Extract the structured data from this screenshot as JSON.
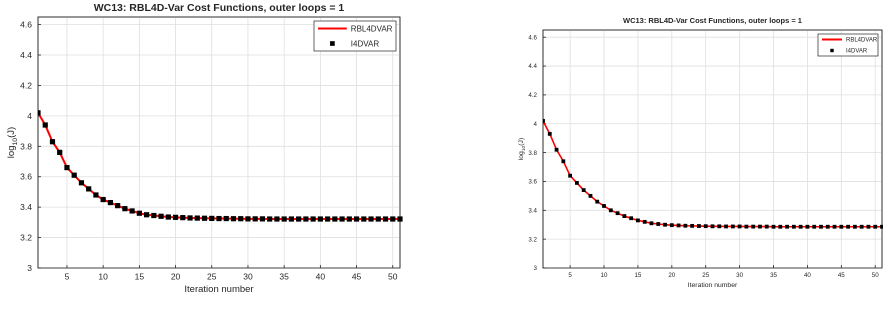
{
  "chart_data": [
    {
      "type": "line",
      "title": "WC13: RBL4D-Var Cost Functions, outer loops = 1",
      "xlabel": "Iteration number",
      "ylabel_base": "log",
      "ylabel_sub": "10",
      "ylabel_arg": "(J)",
      "xlim": [
        1,
        51
      ],
      "ylim": [
        3.0,
        4.65
      ],
      "grid": true,
      "legend_position": "top-right",
      "xticks": [
        5,
        10,
        15,
        20,
        25,
        30,
        35,
        40,
        45,
        50
      ],
      "xtick_labels": [
        "5",
        "10",
        "15",
        "20",
        "25",
        "30",
        "35",
        "40",
        "45",
        "50"
      ],
      "yticks": [
        3.0,
        3.2,
        3.4,
        3.6,
        3.8,
        4.0,
        4.2,
        4.4,
        4.6
      ],
      "ytick_labels": [
        "3",
        "3.2",
        "3.4",
        "3.6",
        "3.8",
        "4",
        "4.2",
        "4.4",
        "4.6"
      ],
      "series": [
        {
          "name": "RBL4DVAR",
          "style": "line",
          "color": "#ff0000",
          "x": [
            1,
            2,
            3,
            4,
            5,
            6,
            7,
            8,
            9,
            10,
            11,
            12,
            13,
            14,
            15,
            16,
            17,
            18,
            19,
            20,
            21,
            22,
            23,
            24,
            25,
            26,
            27,
            28,
            29,
            30,
            31,
            32,
            33,
            34,
            35,
            36,
            37,
            38,
            39,
            40,
            41,
            42,
            43,
            44,
            45,
            46,
            47,
            48,
            49,
            50,
            51
          ],
          "y": [
            4.02,
            3.94,
            3.83,
            3.76,
            3.66,
            3.61,
            3.56,
            3.52,
            3.48,
            3.45,
            3.43,
            3.41,
            3.39,
            3.375,
            3.36,
            3.35,
            3.345,
            3.34,
            3.335,
            3.333,
            3.331,
            3.329,
            3.328,
            3.327,
            3.326,
            3.325,
            3.325,
            3.324,
            3.324,
            3.323,
            3.323,
            3.323,
            3.322,
            3.322,
            3.322,
            3.322,
            3.322,
            3.322,
            3.322,
            3.322,
            3.322,
            3.322,
            3.322,
            3.322,
            3.322,
            3.322,
            3.322,
            3.322,
            3.322,
            3.322,
            3.322
          ]
        },
        {
          "name": "I4DVAR",
          "style": "marker",
          "color": "#000000",
          "x": [
            1,
            2,
            3,
            4,
            5,
            6,
            7,
            8,
            9,
            10,
            11,
            12,
            13,
            14,
            15,
            16,
            17,
            18,
            19,
            20,
            21,
            22,
            23,
            24,
            25,
            26,
            27,
            28,
            29,
            30,
            31,
            32,
            33,
            34,
            35,
            36,
            37,
            38,
            39,
            40,
            41,
            42,
            43,
            44,
            45,
            46,
            47,
            48,
            49,
            50,
            51
          ],
          "y": [
            4.02,
            3.94,
            3.83,
            3.76,
            3.66,
            3.61,
            3.56,
            3.52,
            3.48,
            3.45,
            3.43,
            3.41,
            3.39,
            3.375,
            3.36,
            3.35,
            3.345,
            3.34,
            3.335,
            3.333,
            3.331,
            3.329,
            3.328,
            3.327,
            3.326,
            3.325,
            3.325,
            3.324,
            3.324,
            3.323,
            3.323,
            3.323,
            3.322,
            3.322,
            3.322,
            3.322,
            3.322,
            3.322,
            3.322,
            3.322,
            3.322,
            3.322,
            3.322,
            3.322,
            3.322,
            3.322,
            3.322,
            3.322,
            3.322,
            3.322,
            3.322
          ]
        }
      ]
    },
    {
      "type": "line",
      "title": "WC13: RBL4D-Var Cost Functions, outer loops = 1",
      "xlabel": "Iteration number",
      "ylabel_base": "log",
      "ylabel_sub": "10",
      "ylabel_arg": "(J)",
      "xlim": [
        1,
        51
      ],
      "ylim": [
        3.0,
        4.65
      ],
      "grid": true,
      "legend_position": "top-right",
      "xticks": [
        5,
        10,
        15,
        20,
        25,
        30,
        35,
        40,
        45,
        50
      ],
      "xtick_labels": [
        "5",
        "10",
        "15",
        "20",
        "25",
        "30",
        "35",
        "40",
        "45",
        "50"
      ],
      "yticks": [
        3.0,
        3.2,
        3.4,
        3.6,
        3.8,
        4.0,
        4.2,
        4.4,
        4.6
      ],
      "ytick_labels": [
        "3",
        "3.2",
        "3.4",
        "3.6",
        "3.8",
        "4",
        "4.2",
        "4.4",
        "4.6"
      ],
      "series": [
        {
          "name": "RBL4DVAR",
          "style": "line",
          "color": "#ff0000",
          "x": [
            1,
            2,
            3,
            4,
            5,
            6,
            7,
            8,
            9,
            10,
            11,
            12,
            13,
            14,
            15,
            16,
            17,
            18,
            19,
            20,
            21,
            22,
            23,
            24,
            25,
            26,
            27,
            28,
            29,
            30,
            31,
            32,
            33,
            34,
            35,
            36,
            37,
            38,
            39,
            40,
            41,
            42,
            43,
            44,
            45,
            46,
            47,
            48,
            49,
            50,
            51
          ],
          "y": [
            4.02,
            3.93,
            3.82,
            3.74,
            3.64,
            3.59,
            3.54,
            3.5,
            3.46,
            3.43,
            3.4,
            3.38,
            3.36,
            3.345,
            3.33,
            3.32,
            3.31,
            3.305,
            3.3,
            3.297,
            3.295,
            3.293,
            3.292,
            3.291,
            3.29,
            3.289,
            3.289,
            3.288,
            3.288,
            3.288,
            3.287,
            3.287,
            3.287,
            3.287,
            3.286,
            3.286,
            3.286,
            3.286,
            3.286,
            3.286,
            3.286,
            3.286,
            3.286,
            3.286,
            3.286,
            3.286,
            3.286,
            3.286,
            3.286,
            3.286,
            3.286
          ]
        },
        {
          "name": "I4DVAR",
          "style": "marker",
          "color": "#000000",
          "x": [
            1,
            2,
            3,
            4,
            5,
            6,
            7,
            8,
            9,
            10,
            11,
            12,
            13,
            14,
            15,
            16,
            17,
            18,
            19,
            20,
            21,
            22,
            23,
            24,
            25,
            26,
            27,
            28,
            29,
            30,
            31,
            32,
            33,
            34,
            35,
            36,
            37,
            38,
            39,
            40,
            41,
            42,
            43,
            44,
            45,
            46,
            47,
            48,
            49,
            50,
            51
          ],
          "y": [
            4.02,
            3.93,
            3.82,
            3.74,
            3.64,
            3.59,
            3.54,
            3.5,
            3.46,
            3.43,
            3.4,
            3.38,
            3.36,
            3.345,
            3.33,
            3.32,
            3.31,
            3.305,
            3.3,
            3.297,
            3.295,
            3.293,
            3.292,
            3.291,
            3.29,
            3.289,
            3.289,
            3.288,
            3.288,
            3.288,
            3.287,
            3.287,
            3.287,
            3.287,
            3.286,
            3.286,
            3.286,
            3.286,
            3.286,
            3.286,
            3.286,
            3.286,
            3.286,
            3.286,
            3.286,
            3.286,
            3.286,
            3.286,
            3.286,
            3.286,
            3.286
          ]
        }
      ]
    }
  ]
}
